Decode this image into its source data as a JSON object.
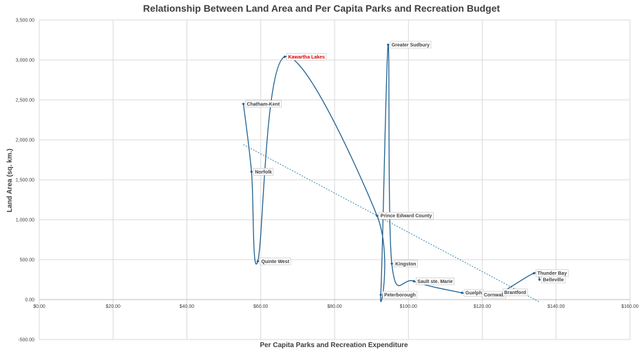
{
  "chart_data": {
    "type": "scatter",
    "title": "Relationship Between Land Area and Per Capita Parks and Recreation Budget",
    "xlabel": "Per Capita Parks and Recreation Expenditure",
    "ylabel": "Land Area (sq. km.)",
    "xlim": [
      0,
      160
    ],
    "ylim": [
      -500,
      3500
    ],
    "x_ticks": [
      0,
      20,
      40,
      60,
      80,
      100,
      120,
      140,
      160
    ],
    "x_tick_labels": [
      "$0.00",
      "$20.00",
      "$40.00",
      "$60.00",
      "$80.00",
      "$100.00",
      "$120.00",
      "$140.00",
      "$160.00"
    ],
    "y_ticks": [
      -500,
      0,
      500,
      1000,
      1500,
      2000,
      2500,
      3000,
      3500
    ],
    "y_tick_labels": [
      "-500.00",
      "0.00",
      "500.00",
      "1,000.00",
      "1,500.00",
      "2,000.00",
      "2,500.00",
      "3,000.00",
      "3,500.00"
    ],
    "grid": true,
    "smoothed_line": true,
    "series_color": "#1f5f8f",
    "trendline": {
      "type": "linear",
      "style": "dotted",
      "color": "#2e86ab",
      "x_start": 55.3,
      "y_start": 1940,
      "x_end": 135.5,
      "y_end": -30
    },
    "highlight_color": "#e00000",
    "points": [
      {
        "name": "Chatham-Kent",
        "x": 55.3,
        "y": 2450,
        "highlight": false
      },
      {
        "name": "Norfolk",
        "x": 57.5,
        "y": 1600,
        "highlight": false
      },
      {
        "name": "Quinte West",
        "x": 59.2,
        "y": 480,
        "highlight": false
      },
      {
        "name": "Kawartha Lakes",
        "x": 66.5,
        "y": 3040,
        "highlight": true
      },
      {
        "name": "Prince Edward County",
        "x": 91.5,
        "y": 1050,
        "highlight": false
      },
      {
        "name": "Peterborough",
        "x": 92.5,
        "y": 60,
        "highlight": false
      },
      {
        "name": "Greater Sudbury",
        "x": 94.5,
        "y": 3190,
        "highlight": false
      },
      {
        "name": "Kingston",
        "x": 95.5,
        "y": 450,
        "highlight": false
      },
      {
        "name": "Sault ste. Marie",
        "x": 101.5,
        "y": 230,
        "highlight": false
      },
      {
        "name": "Guelph",
        "x": 114.5,
        "y": 85,
        "highlight": false
      },
      {
        "name": "Cornwall",
        "x": 119.5,
        "y": 60,
        "highlight": false
      },
      {
        "name": "Brantford",
        "x": 125,
        "y": 90,
        "highlight": false
      },
      {
        "name": "Thunder Bay",
        "x": 134,
        "y": 330,
        "highlight": false
      },
      {
        "name": "Belleville",
        "x": 135.5,
        "y": 250,
        "highlight": false
      }
    ]
  }
}
